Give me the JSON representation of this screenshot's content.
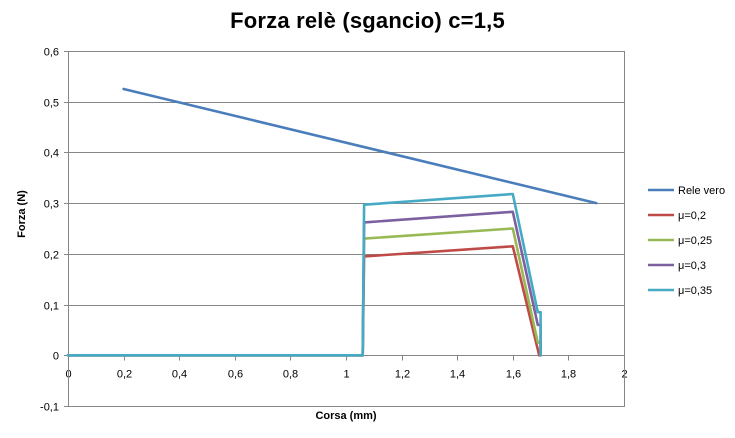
{
  "chart_data": {
    "type": "line",
    "title": "Forza relè (sgancio) c=1,5",
    "xlabel": "Corsa (mm)",
    "ylabel": "Forza (N)",
    "xlim": [
      0,
      2
    ],
    "ylim": [
      -0.1,
      0.6
    ],
    "x_ticks": [
      "0",
      "0,2",
      "0,4",
      "0,6",
      "0,8",
      "1",
      "1,2",
      "1,4",
      "1,6",
      "1,8",
      "2"
    ],
    "y_ticks": [
      "-0,1",
      "0",
      "0,1",
      "0,2",
      "0,3",
      "0,4",
      "0,5",
      "0,6"
    ],
    "grid": "horizontal",
    "legend_position": "right",
    "series": [
      {
        "name": "Rele vero",
        "color": "#4a7ebb",
        "x": [
          0.2,
          1.9
        ],
        "y": [
          0.525,
          0.3
        ]
      },
      {
        "name": "μ=0,2",
        "color": "#be4b48",
        "x": [
          0,
          1.06,
          1.065,
          1.6,
          1.695,
          1.7
        ],
        "y": [
          0,
          0,
          0.195,
          0.215,
          0,
          0
        ]
      },
      {
        "name": "μ=0,25",
        "color": "#98b954",
        "x": [
          0,
          1.06,
          1.065,
          1.6,
          1.69,
          1.7,
          1.7
        ],
        "y": [
          0,
          0,
          0.23,
          0.25,
          0.025,
          0.025,
          0
        ]
      },
      {
        "name": "μ=0,3",
        "color": "#7d60a0",
        "x": [
          0,
          1.06,
          1.065,
          1.6,
          1.69,
          1.7,
          1.7
        ],
        "y": [
          0,
          0,
          0.262,
          0.283,
          0.06,
          0.06,
          0
        ]
      },
      {
        "name": "μ=0,35",
        "color": "#46aac5",
        "x": [
          0,
          1.06,
          1.065,
          1.6,
          1.69,
          1.7,
          1.7
        ],
        "y": [
          0,
          0,
          0.297,
          0.318,
          0.085,
          0.085,
          0
        ]
      }
    ]
  }
}
